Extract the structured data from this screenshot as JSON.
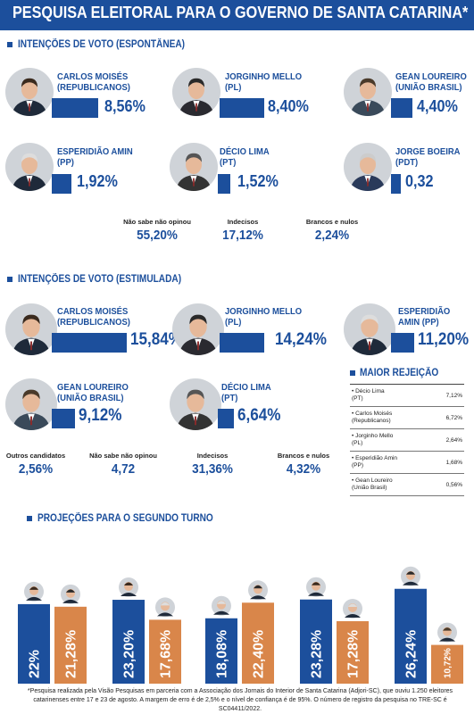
{
  "header": {
    "title": "PESQUISA ELEITORAL PARA O GOVERNO DE SANTA CATARINA*"
  },
  "colors": {
    "blue": "#1c4f9c",
    "orange": "#d9864a",
    "photo_bg": "#cfd3d8"
  },
  "spontaneous": {
    "heading": "INTENÇÕES DE VOTO  (ESPONTÂNEA)",
    "candidates": [
      {
        "name": "CARLOS MOISÉS\n(REPUBLICANOS)",
        "pct_text": "8,56%",
        "value": 8.56
      },
      {
        "name": "JORGINHO MELLO\n(PL)",
        "pct_text": "8,40%",
        "value": 8.4
      },
      {
        "name": "GEAN LOUREIRO\n(UNIÃO BRASIL)",
        "pct_text": "4,40%",
        "value": 4.4
      },
      {
        "name": "ESPERIDIÃO AMIN\n(PP)",
        "pct_text": "1,92%",
        "value": 1.92
      },
      {
        "name": "DÉCIO LIMA\n(PT)",
        "pct_text": "1,52%",
        "value": 1.52
      },
      {
        "name": "JORGE BOEIRA\n(PDT)",
        "pct_text": "0,32",
        "value": 0.32
      }
    ],
    "stats": [
      {
        "label": "Não sabe não opinou",
        "value": "55,20%"
      },
      {
        "label": "Indecisos",
        "value": "17,12%"
      },
      {
        "label": "Brancos e nulos",
        "value": "2,24%"
      }
    ]
  },
  "stimulated": {
    "heading": "INTENÇÕES DE VOTO  (ESTIMULADA)",
    "candidates": [
      {
        "name": "CARLOS MOISÉS\n(REPUBLICANOS)",
        "pct_text": "15,84%",
        "value": 15.84
      },
      {
        "name": "JORGINHO MELLO\n(PL)",
        "pct_text": "14,24%",
        "value": 14.24
      },
      {
        "name": "ESPERIDIÃO\nAMIN (PP)",
        "pct_text": "11,20%",
        "value": 11.2
      },
      {
        "name": "GEAN LOUREIRO\n(UNIÃO BRASIL)",
        "pct_text": "9,12%",
        "value": 9.12
      },
      {
        "name": "DÉCIO LIMA\n(PT)",
        "pct_text": "6,64%",
        "value": 6.64
      }
    ],
    "stats": [
      {
        "label": "Outros candidatos",
        "value": "2,56%"
      },
      {
        "label": "Não sabe não opinou",
        "value": "4,72"
      },
      {
        "label": "Indecisos",
        "value": "31,36%"
      },
      {
        "label": "Brancos e nulos",
        "value": "4,32%"
      }
    ]
  },
  "rejection": {
    "heading": "MAIOR REJEIÇÃO",
    "rows": [
      {
        "name": "• Décio Lima\n(PT)",
        "value": "7,12%"
      },
      {
        "name": "• Carlos Moisés\n(Republicanos)",
        "value": "6,72%"
      },
      {
        "name": "• Jorginho Mello\n(PL)",
        "value": "2,64%"
      },
      {
        "name": "• Esperidião Amin\n(PP)",
        "value": "1,68%"
      },
      {
        "name": "• Gean Loureiro\n(União Brasil)",
        "value": "0,56%"
      }
    ]
  },
  "runoff": {
    "heading": "PROJEÇÕES PARA O SEGUNDO TURNO"
  },
  "chart_data": {
    "type": "bar",
    "title": "PROJEÇÕES PARA O SEGUNDO TURNO",
    "xlabel": "",
    "ylabel": "",
    "ylim": [
      0,
      30
    ],
    "series": [
      {
        "values": [
          22,
          23.2,
          18.08,
          23.28,
          26.24
        ],
        "labels": [
          "22%",
          "23,20%",
          "18,08%",
          "23,28%",
          "26,24%"
        ],
        "color": "#1c4f9c"
      },
      {
        "values": [
          21.28,
          17.68,
          22.4,
          17.28,
          10.72
        ],
        "labels": [
          "21,28%",
          "17,68%",
          "22,40%",
          "17,28%",
          "10,72%"
        ],
        "color": "#d9864a"
      }
    ]
  },
  "footnote": "*Pesquisa realizada pela Visão Pesquisas em parceria com a Associação dos Jornais do Interior de Santa Catarina (Adjori-SC), que ouviu 1.250 eleitores catarinenses entre 17 e 23 de agosto. A margem de erro é de 2,5% e o nível de confiança é de 95%. O número de registro da pesquisa no TRE-SC é SC04411/2022."
}
